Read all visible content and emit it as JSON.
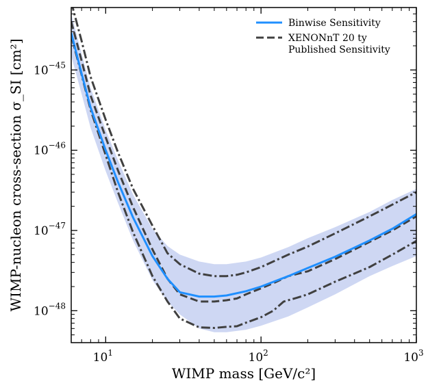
{
  "chart_data": {
    "type": "line",
    "x_scale": "log",
    "y_scale": "log",
    "xlim": [
      6,
      1000
    ],
    "ylim": [
      4e-49,
      6e-45
    ],
    "xlabel": "WIMP mass [GeV/c²]",
    "ylabel": "WIMP-nucleon cross-section σ_SI [cm²]",
    "x_ticks": [
      {
        "value": 10,
        "base": "10",
        "exp": "1"
      },
      {
        "value": 100,
        "base": "10",
        "exp": "2"
      },
      {
        "value": 1000,
        "base": "10",
        "exp": "3"
      }
    ],
    "y_ticks": [
      {
        "value": 1e-48,
        "base": "10",
        "exp": "−48"
      },
      {
        "value": 1e-47,
        "base": "10",
        "exp": "−47"
      },
      {
        "value": 1e-46,
        "base": "10",
        "exp": "−46"
      },
      {
        "value": 1e-45,
        "base": "10",
        "exp": "−45"
      }
    ],
    "legend": {
      "placement": "top-right",
      "entries": [
        {
          "series": "binwise",
          "label_lines": [
            "Binwise Sensitivity"
          ]
        },
        {
          "series": "published",
          "label_lines": [
            "XENONnT 20 ty",
            "Published Sensitivity"
          ]
        }
      ]
    },
    "colors": {
      "binwise": "#1f8fff",
      "band": "#c9d3f2",
      "published": "#404040"
    },
    "band": {
      "x": [
        6,
        7,
        8,
        10,
        12,
        15,
        20,
        25,
        30,
        40,
        50,
        60,
        80,
        100,
        150,
        200,
        300,
        500,
        700,
        1000
      ],
      "upper": [
        5e-45,
        1.6e-45,
        6e-46,
        1.8e-46,
        7.5e-47,
        2.8e-47,
        1.05e-47,
        6.4e-48,
        5e-48,
        4.1e-48,
        3.8e-48,
        3.8e-48,
        4.1e-48,
        4.6e-48,
        6.2e-48,
        8e-48,
        1.1e-47,
        1.7e-47,
        2.4e-47,
        3.3e-47
      ],
      "lower": [
        1.5e-45,
        5e-46,
        1.9e-46,
        5.5e-47,
        2.2e-47,
        7.5e-48,
        2.4e-48,
        1.3e-48,
        9e-49,
        6e-49,
        5.4e-49,
        5.4e-49,
        5.8e-49,
        6.5e-49,
        8.5e-49,
        1.1e-48,
        1.6e-48,
        2.7e-48,
        3.6e-48,
        4.8e-48
      ]
    },
    "series": [
      {
        "id": "binwise",
        "style": "solid",
        "x": [
          6,
          7,
          8,
          10,
          12,
          15,
          20,
          25,
          30,
          40,
          50,
          60,
          80,
          100,
          150,
          200,
          300,
          500,
          700,
          1000
        ],
        "y": [
          2.9e-45,
          9e-46,
          3.4e-46,
          1e-46,
          4e-47,
          1.45e-47,
          4.8e-48,
          2.5e-48,
          1.7e-48,
          1.5e-48,
          1.5e-48,
          1.55e-48,
          1.75e-48,
          2e-48,
          2.7e-48,
          3.4e-48,
          4.7e-48,
          7.5e-48,
          1.05e-47,
          1.6e-47
        ]
      },
      {
        "id": "published",
        "style": "dashed",
        "x": [
          6,
          7,
          8,
          10,
          12,
          15,
          20,
          25,
          30,
          40,
          50,
          60,
          70,
          80,
          100,
          120,
          150,
          200,
          300,
          500,
          700,
          1000
        ],
        "y": [
          4e-45,
          1.3e-45,
          4.8e-46,
          1.45e-46,
          5.6e-47,
          1.95e-47,
          5.8e-48,
          2.5e-48,
          1.6e-48,
          1.3e-48,
          1.3e-48,
          1.35e-48,
          1.42e-48,
          1.6e-48,
          1.9e-48,
          2.2e-48,
          2.7e-48,
          3.1e-48,
          4.4e-48,
          7.2e-48,
          1e-47,
          1.5e-47
        ]
      },
      {
        "id": "upper-dashdot",
        "style": "dashdot",
        "x": [
          6,
          7,
          8,
          10,
          12,
          15,
          20,
          25,
          30,
          40,
          50,
          60,
          70,
          80,
          100,
          150,
          200,
          300,
          500,
          700,
          1000
        ],
        "y": [
          7e-45,
          2.3e-45,
          8.2e-46,
          2.4e-46,
          9.4e-47,
          3.3e-47,
          1.15e-47,
          5.2e-48,
          3.8e-48,
          2.9e-48,
          2.7e-48,
          2.7e-48,
          2.8e-48,
          3e-48,
          3.5e-48,
          5e-48,
          6.3e-48,
          9.2e-48,
          1.5e-47,
          2.1e-47,
          3e-47
        ]
      },
      {
        "id": "lower-dashdot",
        "style": "dashdot",
        "x": [
          6,
          7,
          8,
          10,
          12,
          15,
          20,
          25,
          30,
          40,
          50,
          60,
          70,
          80,
          100,
          120,
          140,
          170,
          200,
          300,
          500,
          700,
          1000
        ],
        "y": [
          2.7e-45,
          8.7e-46,
          3.2e-46,
          8.7e-47,
          3e-47,
          9.5e-48,
          2.7e-48,
          1.3e-48,
          8e-49,
          6.2e-49,
          6.1e-49,
          6.3e-49,
          6.4e-49,
          7.1e-49,
          8.3e-49,
          1e-48,
          1.3e-48,
          1.45e-48,
          1.6e-48,
          2.3e-48,
          3.5e-48,
          5e-48,
          7.4e-48
        ]
      }
    ]
  }
}
